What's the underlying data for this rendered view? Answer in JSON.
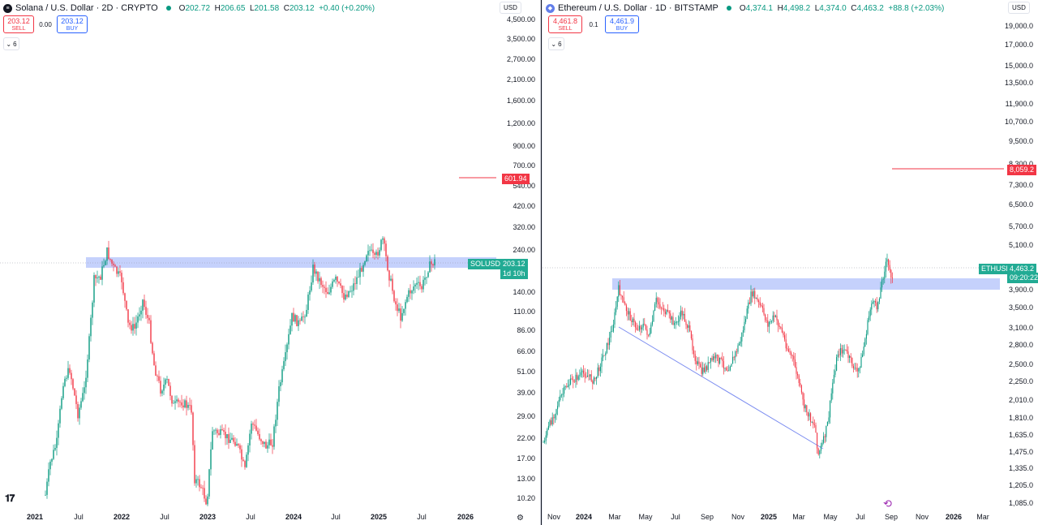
{
  "left": {
    "title": "Solana / U.S. Dollar · 2D · CRYPTO",
    "icon": "solana-icon",
    "ohlc": {
      "o_label": "O",
      "o": "202.72",
      "h_label": "H",
      "h": "206.65",
      "l_label": "L",
      "l": "201.58",
      "c_label": "C",
      "c": "203.12",
      "chg": "+0.40 (+0.20%)"
    },
    "sell": {
      "price": "203.12",
      "label": "SELL"
    },
    "buy": {
      "price": "203.12",
      "label": "BUY"
    },
    "spread": "0.00",
    "indicators_count": "6",
    "currency": "USD",
    "y_ticks": [
      "4,500.00",
      "3,500.00",
      "2,700.00",
      "2,100.00",
      "1,600.00",
      "1,200.00",
      "900.00",
      "700.00",
      "540.00",
      "420.00",
      "320.00",
      "240.00",
      "140.00",
      "110.00",
      "86.00",
      "66.00",
      "51.00",
      "39.00",
      "29.00",
      "22.00",
      "17.00",
      "13.00",
      "10.20"
    ],
    "x_ticks": [
      {
        "label": "2021",
        "bold": true
      },
      {
        "label": "Jul",
        "bold": false
      },
      {
        "label": "2022",
        "bold": true
      },
      {
        "label": "Jul",
        "bold": false
      },
      {
        "label": "2023",
        "bold": true
      },
      {
        "label": "Jul",
        "bold": false
      },
      {
        "label": "2024",
        "bold": true
      },
      {
        "label": "Jul",
        "bold": false
      },
      {
        "label": "2025",
        "bold": true
      },
      {
        "label": "Jul",
        "bold": false
      },
      {
        "label": "2026",
        "bold": true
      }
    ],
    "target_price": "601.94",
    "symbol_tag": "SOLUSD",
    "last_price": "203.12",
    "countdown": "1d 10h",
    "colors": {
      "target": "#f23645",
      "price_tag": "#22ab94",
      "zone": "#bbc9fb"
    }
  },
  "right": {
    "title": "Ethereum / U.S. Dollar · 1D · BITSTAMP",
    "icon": "ethereum-icon",
    "ohlc": {
      "o_label": "O",
      "o": "4,374.1",
      "h_label": "H",
      "h": "4,498.2",
      "l_label": "L",
      "l": "4,374.0",
      "c_label": "C",
      "c": "4,463.2",
      "chg": "+88.8 (+2.03%)"
    },
    "sell": {
      "price": "4,461.8",
      "label": "SELL"
    },
    "buy": {
      "price": "4,461.9",
      "label": "BUY"
    },
    "spread": "0.1",
    "indicators_count": "6",
    "currency": "USD",
    "y_ticks": [
      "19,000.0",
      "17,000.0",
      "15,000.0",
      "13,500.0",
      "11,900.0",
      "10,700.0",
      "9,500.0",
      "8,300.0",
      "7,300.0",
      "6,500.0",
      "5,700.0",
      "5,100.0",
      "3,900.0",
      "3,500.0",
      "3,100.0",
      "2,800.0",
      "2,500.0",
      "2,250.0",
      "2,010.0",
      "1,810.0",
      "1,635.0",
      "1,475.0",
      "1,335.0",
      "1,205.0",
      "1,085.0"
    ],
    "x_ticks": [
      {
        "label": "Nov",
        "bold": false
      },
      {
        "label": "2024",
        "bold": true
      },
      {
        "label": "Mar",
        "bold": false
      },
      {
        "label": "May",
        "bold": false
      },
      {
        "label": "Jul",
        "bold": false
      },
      {
        "label": "Sep",
        "bold": false
      },
      {
        "label": "Nov",
        "bold": false
      },
      {
        "label": "2025",
        "bold": true
      },
      {
        "label": "Mar",
        "bold": false
      },
      {
        "label": "May",
        "bold": false
      },
      {
        "label": "Jul",
        "bold": false
      },
      {
        "label": "Sep",
        "bold": false
      },
      {
        "label": "Nov",
        "bold": false
      },
      {
        "label": "2026",
        "bold": true
      },
      {
        "label": "Mar",
        "bold": false
      }
    ],
    "target_price": "8,059.2",
    "symbol_tag": "ETHUSD",
    "last_price": "4,463.2",
    "countdown": "09:20:22",
    "colors": {
      "target": "#f23645",
      "price_tag": "#22ab94",
      "zone": "#bbc9fb",
      "trendline": "#7b8cf0"
    }
  },
  "icons": {
    "logo": "tradingview-logo",
    "settings": "settings-icon",
    "replay": "replay-icon",
    "chevron": "chevron-down-icon"
  }
}
